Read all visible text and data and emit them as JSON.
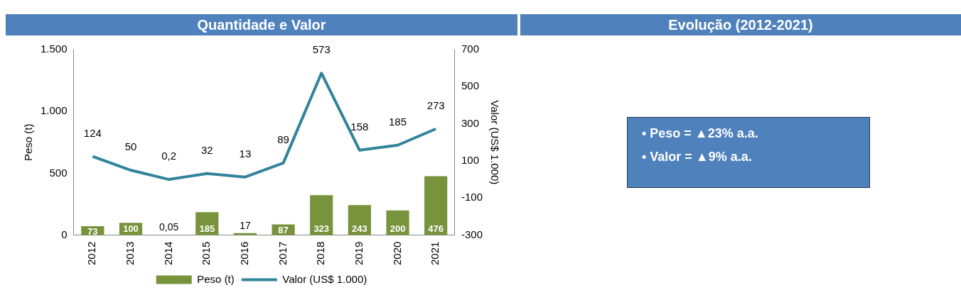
{
  "chart_data": [
    {
      "type": "bar",
      "title": "Quantidade e Valor",
      "ylabel": "Peso (t)",
      "y2label": "Valor (US$ 1.000)",
      "categories": [
        "2012",
        "2013",
        "2014",
        "2015",
        "2016",
        "2017",
        "2018",
        "2019",
        "2020",
        "2021"
      ],
      "series": [
        {
          "name": "Peso (t)",
          "type": "bar",
          "color": "#77933c",
          "values": [
            73,
            100,
            0.05,
            185,
            17,
            87,
            323,
            243,
            200,
            476
          ],
          "value_labels": [
            "73",
            "100",
            "0,05",
            "185",
            "17",
            "87",
            "323",
            "243",
            "200",
            "476"
          ]
        },
        {
          "name": "Valor (US$ 1.000)",
          "type": "line",
          "axis": "y2",
          "color": "#31849b",
          "marker": "none",
          "line_style": "solid",
          "values": [
            124,
            50,
            0.2,
            32,
            13,
            89,
            573,
            158,
            185,
            273
          ],
          "value_labels": [
            "124",
            "50",
            "0,2",
            "32",
            "13",
            "89",
            "573",
            "158",
            "185",
            "273"
          ]
        }
      ],
      "ylim": [
        0,
        1500
      ],
      "yticks": [
        0,
        {
          "value": 500,
          "label": "500"
        },
        {
          "value": 1000,
          "label": "1.000"
        },
        {
          "value": 1500,
          "label": "1.500"
        }
      ],
      "y2lim": [
        -300,
        700
      ],
      "y2ticks": [
        -300,
        -100,
        100,
        300,
        500,
        700
      ],
      "grid": false,
      "legend": "bottom"
    },
    {
      "type": "other",
      "title": "Evolução (2012-2021)",
      "annotations": [
        "• Peso = ▲23% a.a.",
        "• Valor = ▲9% a.a."
      ]
    }
  ]
}
